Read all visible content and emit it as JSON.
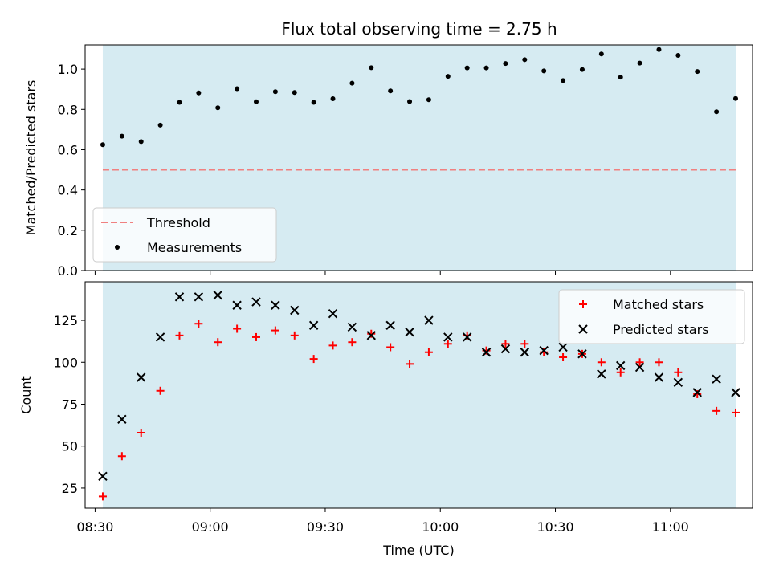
{
  "chart_data": [
    {
      "type": "scatter",
      "title": "Flux total observing time = 2.75 h",
      "xlabel": "",
      "ylabel": "Matched/Predicted stars",
      "ylim": [
        0,
        1.12
      ],
      "yticks": [
        "0.0",
        "0.2",
        "0.4",
        "0.6",
        "0.8",
        "1.0"
      ],
      "legend_position": "lower-left",
      "shaded_range": [
        "08:32",
        "11:17"
      ],
      "shade_color": "#add8e6",
      "threshold": {
        "name": "Threshold",
        "value": 0.5,
        "color": "#f08080",
        "style": "dashed"
      },
      "series": [
        {
          "name": "Measurements",
          "color": "#000000",
          "marker": "dot",
          "x": [
            "08:32",
            "08:37",
            "08:42",
            "08:47",
            "08:52",
            "08:57",
            "09:02",
            "09:07",
            "09:12",
            "09:17",
            "09:22",
            "09:27",
            "09:32",
            "09:37",
            "09:42",
            "09:47",
            "09:52",
            "09:57",
            "10:02",
            "10:07",
            "10:12",
            "10:17",
            "10:22",
            "10:27",
            "10:32",
            "10:37",
            "10:42",
            "10:47",
            "10:52",
            "10:57",
            "11:02",
            "11:07",
            "11:12",
            "11:17"
          ],
          "values": [
            0.625,
            0.667,
            0.64,
            0.722,
            0.835,
            0.882,
            0.808,
            0.903,
            0.838,
            0.888,
            0.884,
            0.835,
            0.853,
            0.93,
            1.007,
            0.892,
            0.839,
            0.848,
            0.964,
            1.006,
            1.006,
            1.028,
            1.047,
            0.991,
            0.943,
            0.998,
            1.075,
            0.96,
            1.03,
            1.097,
            1.068,
            0.988,
            0.788,
            0.854
          ]
        }
      ]
    },
    {
      "type": "scatter",
      "title": "",
      "xlabel": "Time (UTC)",
      "ylabel": "Count",
      "ylim": [
        13,
        148
      ],
      "yticks": [
        "25",
        "50",
        "75",
        "100",
        "125"
      ],
      "xticks": [
        "08:30",
        "09:00",
        "09:30",
        "10:00",
        "10:30",
        "11:00"
      ],
      "legend_position": "top-right",
      "shaded_range": [
        "08:32",
        "11:17"
      ],
      "shade_color": "#add8e6",
      "series": [
        {
          "name": "Matched stars",
          "color": "#ff0000",
          "marker": "plus",
          "x": [
            "08:32",
            "08:37",
            "08:42",
            "08:47",
            "08:52",
            "08:57",
            "09:02",
            "09:07",
            "09:12",
            "09:17",
            "09:22",
            "09:27",
            "09:32",
            "09:37",
            "09:42",
            "09:47",
            "09:52",
            "09:57",
            "10:02",
            "10:07",
            "10:12",
            "10:17",
            "10:22",
            "10:27",
            "10:32",
            "10:37",
            "10:42",
            "10:47",
            "10:52",
            "10:57",
            "11:02",
            "11:07",
            "11:12",
            "11:17"
          ],
          "values": [
            20,
            44,
            58,
            83,
            116,
            123,
            112,
            120,
            115,
            119,
            116,
            102,
            110,
            112,
            117,
            109,
            99,
            106,
            111,
            116,
            107,
            111,
            111,
            106,
            103,
            105,
            100,
            94,
            100,
            100,
            94,
            81,
            71,
            70
          ]
        },
        {
          "name": "Predicted stars",
          "color": "#000000",
          "marker": "x",
          "x": [
            "08:32",
            "08:37",
            "08:42",
            "08:47",
            "08:52",
            "08:57",
            "09:02",
            "09:07",
            "09:12",
            "09:17",
            "09:22",
            "09:27",
            "09:32",
            "09:37",
            "09:42",
            "09:47",
            "09:52",
            "09:57",
            "10:02",
            "10:07",
            "10:12",
            "10:17",
            "10:22",
            "10:27",
            "10:32",
            "10:37",
            "10:42",
            "10:47",
            "10:52",
            "10:57",
            "11:02",
            "11:07",
            "11:12",
            "11:17"
          ],
          "values": [
            32,
            66,
            91,
            115,
            139,
            139,
            140,
            134,
            136,
            134,
            131,
            122,
            129,
            121,
            116,
            122,
            118,
            125,
            115,
            115,
            106,
            108,
            106,
            107,
            109,
            105,
            93,
            98,
            97,
            91,
            88,
            82,
            90,
            82
          ]
        }
      ]
    }
  ]
}
